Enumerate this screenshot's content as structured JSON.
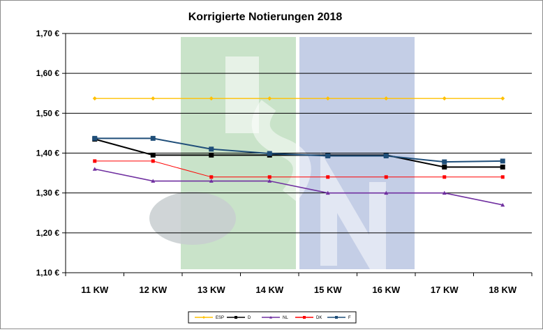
{
  "chart_data": {
    "type": "line",
    "title": "Korrigierte Notierungen 2018",
    "xlabel": "",
    "ylabel": "",
    "categories": [
      "11 KW",
      "12 KW",
      "13 KW",
      "14 KW",
      "15 KW",
      "16 KW",
      "17 KW",
      "18 KW"
    ],
    "ylim": [
      1.1,
      1.7
    ],
    "yticks": [
      "1,10 €",
      "1,20 €",
      "1,30 €",
      "1,40 €",
      "1,50 €",
      "1,60 €",
      "1,70 €"
    ],
    "grid": true,
    "legend_position": "bottom",
    "series": [
      {
        "name": "ESP",
        "color": "#FFC000",
        "marker": "diamond",
        "values": [
          1.537,
          1.537,
          1.537,
          1.537,
          1.537,
          1.537,
          1.537,
          1.537
        ]
      },
      {
        "name": "D",
        "color": "#000000",
        "marker": "square",
        "values": [
          1.435,
          1.395,
          1.395,
          1.395,
          1.395,
          1.395,
          1.365,
          1.365
        ]
      },
      {
        "name": "NL",
        "color": "#7030A0",
        "marker": "triangle",
        "values": [
          1.36,
          1.33,
          1.33,
          1.33,
          1.3,
          1.3,
          1.3,
          1.27
        ]
      },
      {
        "name": "DK",
        "color": "#FF0000",
        "marker": "square",
        "values": [
          1.38,
          1.38,
          1.34,
          1.34,
          1.34,
          1.34,
          1.34,
          1.34
        ]
      },
      {
        "name": "F",
        "color": "#1F4E79",
        "marker": "square",
        "values": [
          1.437,
          1.437,
          1.41,
          1.399,
          1.393,
          1.393,
          1.378,
          1.38
        ]
      }
    ]
  },
  "watermark": {
    "text": "ISN",
    "colors": [
      "#C9E3C9",
      "#C4CEE6"
    ]
  }
}
